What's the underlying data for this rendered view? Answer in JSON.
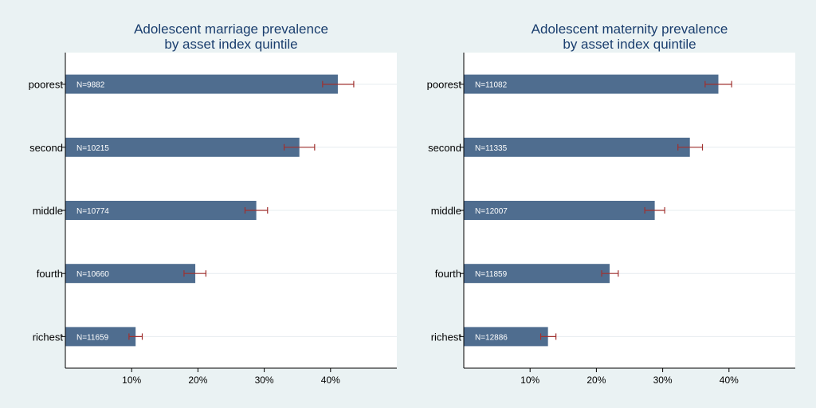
{
  "colors": {
    "background": "#eaf2f3",
    "plot_area": "#ffffff",
    "bar": "#4f6d8f",
    "error_bar": "#a0302e",
    "grid": "#e6ecef",
    "axis": "#000000",
    "title": "#1a3e6e"
  },
  "chart_data": [
    {
      "type": "bar",
      "orientation": "horizontal",
      "title_lines": [
        "Adolescent marriage prevalence",
        "by asset index quintile"
      ],
      "categories": [
        "poorest",
        "second",
        "middle",
        "fourth",
        "richest"
      ],
      "values": [
        41.1,
        35.3,
        28.8,
        19.6,
        10.6
      ],
      "ci_low": [
        38.8,
        33.0,
        27.1,
        17.9,
        9.6
      ],
      "ci_high": [
        43.5,
        37.6,
        30.5,
        21.2,
        11.6
      ],
      "bar_labels": [
        "N=9882",
        "N=10215",
        "N=10774",
        "N=10660",
        "N=11659"
      ],
      "x_ticks": [
        10,
        20,
        30,
        40
      ],
      "x_tick_labels": [
        "10%",
        "20%",
        "30%",
        "40%"
      ],
      "xlim": [
        0,
        50
      ],
      "grid": true
    },
    {
      "type": "bar",
      "orientation": "horizontal",
      "title_lines": [
        "Adolescent maternity prevalence",
        "by asset index quintile"
      ],
      "categories": [
        "poorest",
        "second",
        "middle",
        "fourth",
        "richest"
      ],
      "values": [
        38.4,
        34.1,
        28.8,
        22.0,
        12.7
      ],
      "ci_low": [
        36.4,
        32.3,
        27.3,
        20.8,
        11.6
      ],
      "ci_high": [
        40.4,
        36.0,
        30.3,
        23.3,
        13.9
      ],
      "bar_labels": [
        "N=11082",
        "N=11335",
        "N=12007",
        "N=11859",
        "N=12886"
      ],
      "x_ticks": [
        10,
        20,
        30,
        40
      ],
      "x_tick_labels": [
        "10%",
        "20%",
        "30%",
        "40%"
      ],
      "xlim": [
        0,
        50
      ],
      "grid": true
    }
  ]
}
